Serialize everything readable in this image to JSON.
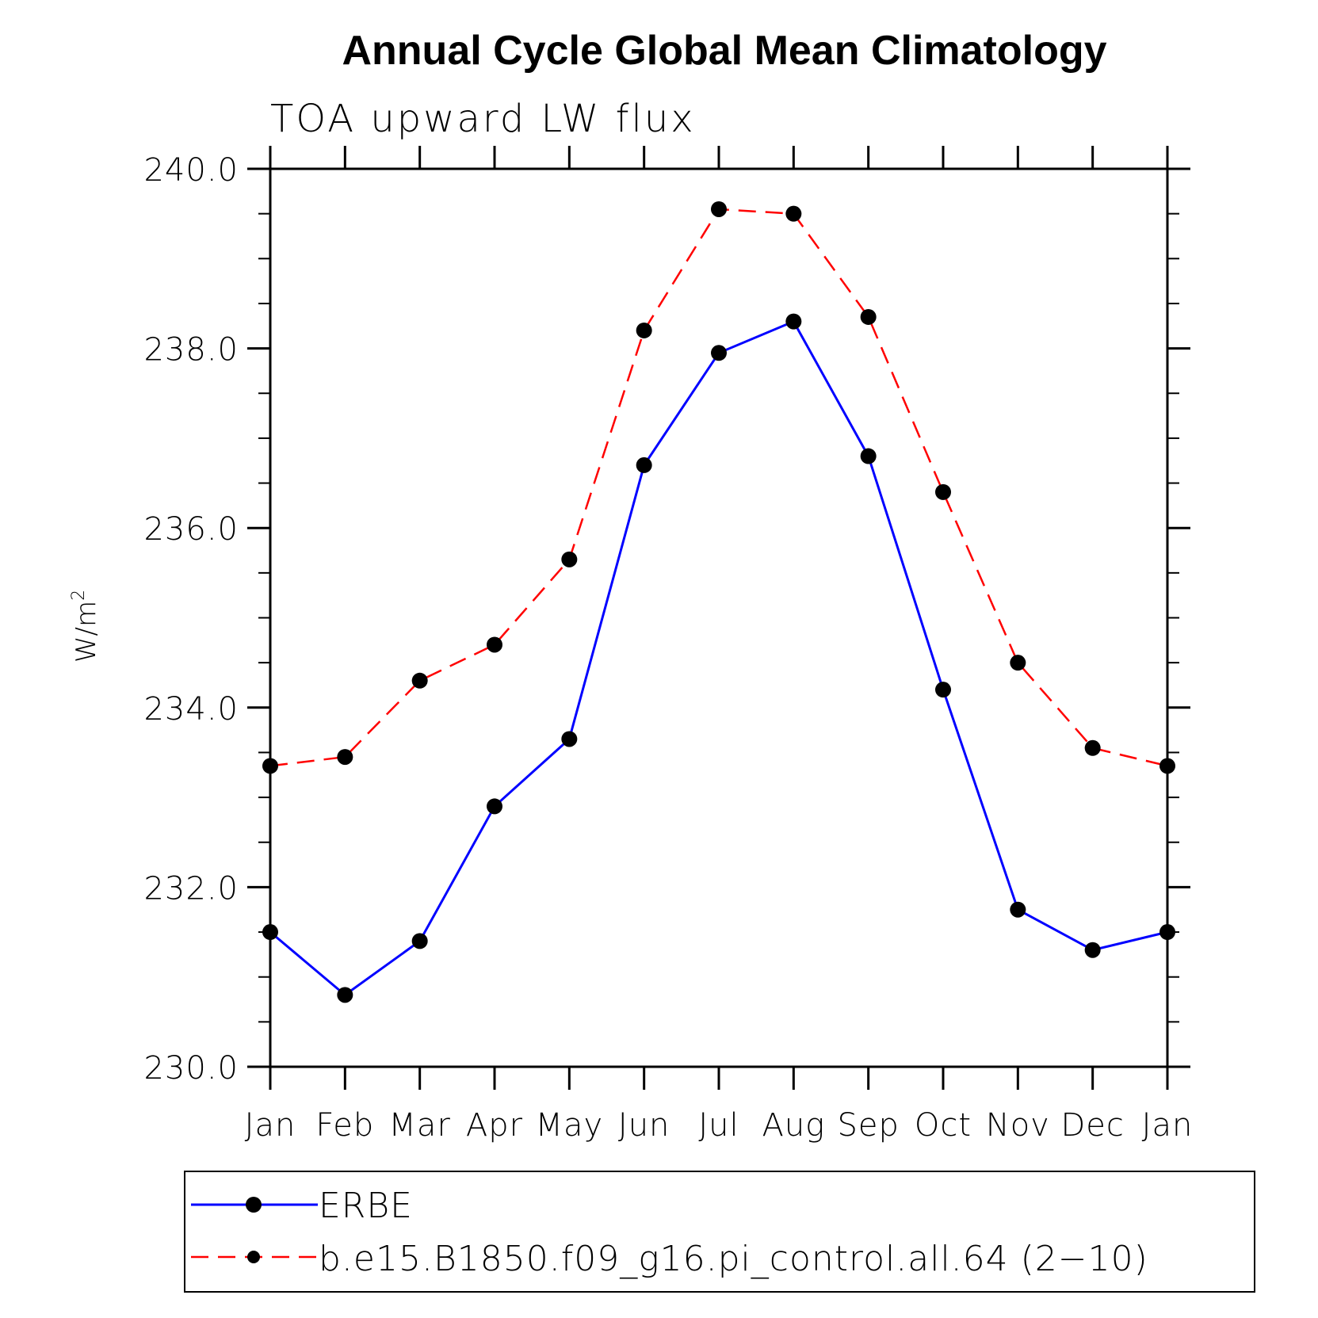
{
  "chart_data": {
    "type": "line",
    "title": "Annual Cycle Global Mean Climatology",
    "subtitle": "TOA upward LW flux",
    "ylabel": "W/m",
    "ylabel_sup": "2",
    "ylim": [
      230.0,
      240.0
    ],
    "yticks": [
      "230.0",
      "232.0",
      "234.0",
      "236.0",
      "238.0",
      "240.0"
    ],
    "categories": [
      "Jan",
      "Feb",
      "Mar",
      "Apr",
      "May",
      "Jun",
      "Jul",
      "Aug",
      "Sep",
      "Oct",
      "Nov",
      "Dec",
      "Jan"
    ],
    "series": [
      {
        "name": "ERBE",
        "color": "#0000ff",
        "style": "solid",
        "values": [
          231.5,
          230.8,
          231.4,
          232.9,
          233.65,
          236.7,
          237.95,
          238.3,
          236.8,
          234.2,
          231.75,
          231.3,
          231.5
        ]
      },
      {
        "name": "b.e15.B1850.f09_g16.pi_control.all.64 (2−10)",
        "color": "#ff0000",
        "style": "dashed",
        "values": [
          233.35,
          233.45,
          234.3,
          234.7,
          235.65,
          238.2,
          239.55,
          239.5,
          238.35,
          236.4,
          234.5,
          233.55,
          233.35
        ]
      }
    ],
    "marker_color": "#000000",
    "legend_position": "bottom"
  }
}
